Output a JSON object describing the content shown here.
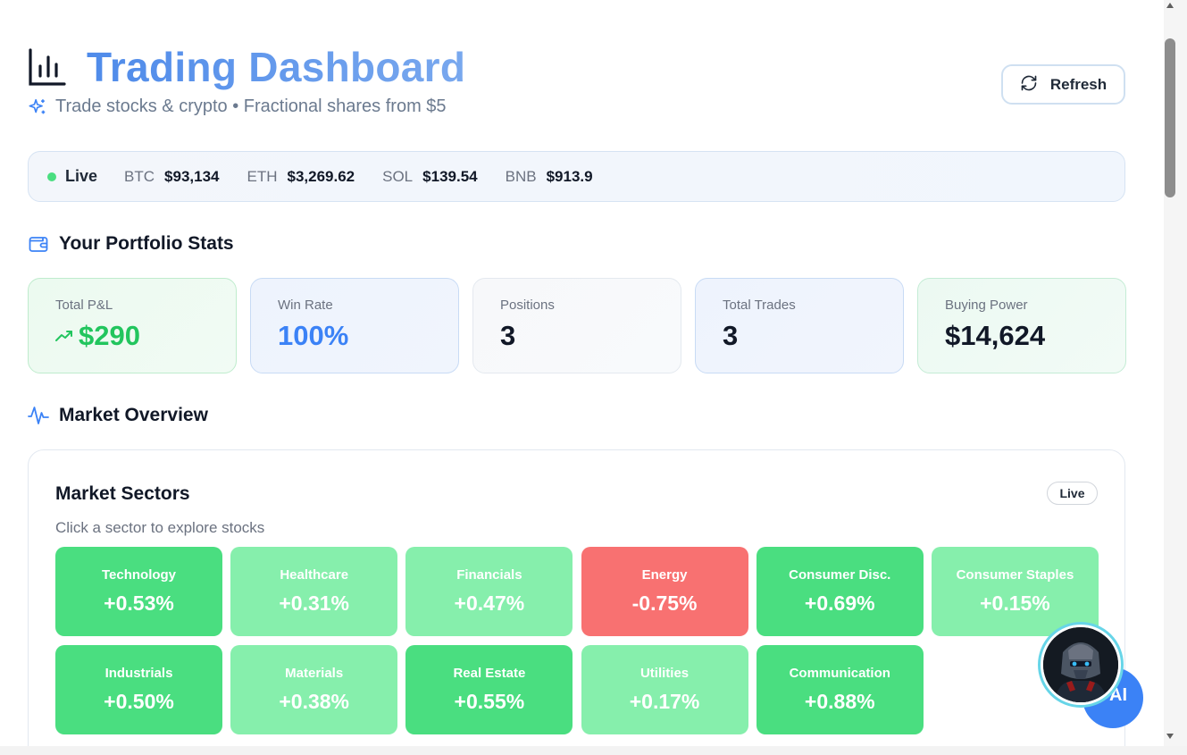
{
  "header": {
    "title": "Trading Dashboard",
    "subtitle": "Trade stocks & crypto • Fractional shares from $5",
    "refresh_label": "Refresh"
  },
  "ticker": {
    "status": "Live",
    "items": [
      {
        "symbol": "BTC",
        "price": "$93,134"
      },
      {
        "symbol": "ETH",
        "price": "$3,269.62"
      },
      {
        "symbol": "SOL",
        "price": "$139.54"
      },
      {
        "symbol": "BNB",
        "price": "$913.9"
      }
    ]
  },
  "portfolio": {
    "heading": "Your Portfolio Stats",
    "stats": [
      {
        "label": "Total P&L",
        "value": "$290"
      },
      {
        "label": "Win Rate",
        "value": "100%"
      },
      {
        "label": "Positions",
        "value": "3"
      },
      {
        "label": "Total Trades",
        "value": "3"
      },
      {
        "label": "Buying Power",
        "value": "$14,624"
      }
    ]
  },
  "market": {
    "heading": "Market Overview",
    "sectors_title": "Market Sectors",
    "sectors_badge": "Live",
    "sectors_subtitle": "Click a sector to explore stocks",
    "sectors": [
      {
        "name": "Technology",
        "change": "+0.53%"
      },
      {
        "name": "Healthcare",
        "change": "+0.31%"
      },
      {
        "name": "Financials",
        "change": "+0.47%"
      },
      {
        "name": "Energy",
        "change": "-0.75%"
      },
      {
        "name": "Consumer Disc.",
        "change": "+0.69%"
      },
      {
        "name": "Consumer Staples",
        "change": "+0.15%"
      },
      {
        "name": "Industrials",
        "change": "+0.50%"
      },
      {
        "name": "Materials",
        "change": "+0.38%"
      },
      {
        "name": "Real Estate",
        "change": "+0.55%"
      },
      {
        "name": "Utilities",
        "change": "+0.17%"
      },
      {
        "name": "Communication",
        "change": "+0.88%"
      }
    ]
  },
  "assistant": {
    "label": "AI"
  },
  "colors": {
    "accent": "#3b82f6",
    "gain_strong": "#4ade80",
    "gain_light": "#86efac",
    "loss": "#f87171"
  }
}
